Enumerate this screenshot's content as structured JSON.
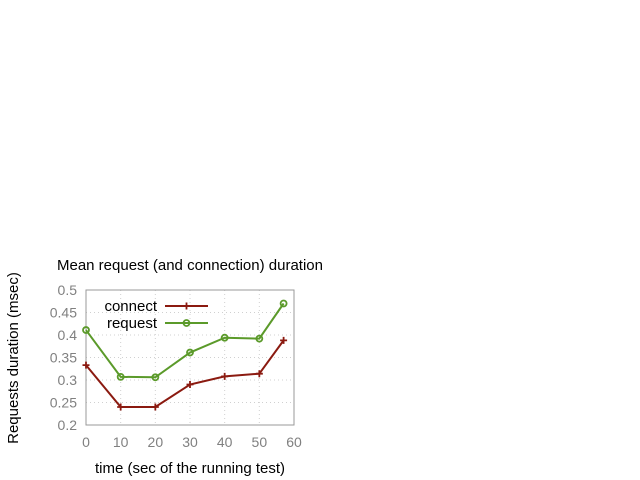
{
  "chart_data": {
    "type": "line",
    "title": "Mean request (and connection) duration",
    "xlabel": "time (sec of the running test)",
    "ylabel": "Requests duration (msec)",
    "xlim": [
      0,
      60
    ],
    "ylim": [
      0.2,
      0.5
    ],
    "xticks": [
      "0",
      "10",
      "20",
      "30",
      "40",
      "50",
      "60"
    ],
    "yticks": [
      "0.2",
      "0.25",
      "0.3",
      "0.35",
      "0.4",
      "0.45",
      "0.5"
    ],
    "grid": true,
    "legend_position": "top-left",
    "x": [
      0,
      10,
      20,
      30,
      40,
      50,
      57
    ],
    "series": [
      {
        "name": "connect",
        "color": "#8b1a10",
        "marker": "plus",
        "values": [
          0.333,
          0.24,
          0.24,
          0.29,
          0.308,
          0.314,
          0.388
        ]
      },
      {
        "name": "request",
        "color": "#5b9a2a",
        "marker": "circle",
        "values": [
          0.411,
          0.307,
          0.306,
          0.361,
          0.394,
          0.392,
          0.47
        ]
      }
    ]
  }
}
